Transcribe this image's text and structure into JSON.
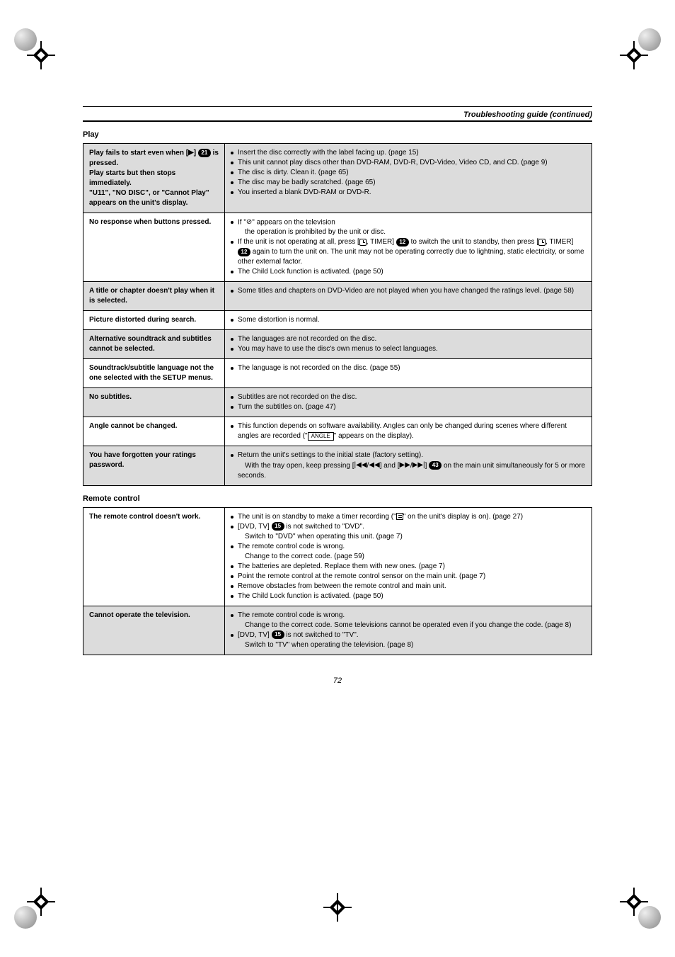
{
  "header": {
    "title": "Troubleshooting guide (continued)"
  },
  "page_number": "72",
  "sections": [
    {
      "heading": "Play",
      "rows": [
        {
          "shaded": true,
          "symptom_parts": [
            {
              "t": "Play fails to start even when ["
            },
            {
              "sym": "▶"
            },
            {
              "t": "] "
            },
            {
              "pill": "21"
            },
            {
              "t": " is pressed."
            },
            {
              "br": true
            },
            {
              "t": "Play starts but then stops immediately."
            },
            {
              "br": true
            },
            {
              "t": "\"U11\", \"NO DISC\", or \"Cannot Play\" appears on the unit's display."
            }
          ],
          "remedies": [
            [
              {
                "t": "Insert the disc correctly with the label facing up. (page 15)"
              }
            ],
            [
              {
                "t": "This unit cannot play discs other than DVD-RAM, DVD-R, DVD-Video, Video CD, and CD. (page 9)"
              }
            ],
            [
              {
                "t": "The disc is dirty. Clean it. (page 65)"
              }
            ],
            [
              {
                "t": "The disc may be badly scratched. (page 65)"
              }
            ],
            [
              {
                "t": "You inserted a blank DVD-RAM or DVD-R."
              }
            ]
          ]
        },
        {
          "shaded": false,
          "symptom_parts": [
            {
              "t": "No response when buttons pressed."
            }
          ],
          "remedies": [
            [
              {
                "t": "If \""
              },
              {
                "sym": "⊘"
              },
              {
                "t": "\" appears on the television"
              },
              {
                "br": true
              },
              {
                "sub": "the operation is prohibited by the unit or disc."
              }
            ],
            [
              {
                "t": "If the unit is not operating at all, press ["
              },
              {
                "clock": true
              },
              {
                "t": ", TIMER] "
              },
              {
                "pill": "12"
              },
              {
                "t": " to switch the unit to standby, then press ["
              },
              {
                "clock": true
              },
              {
                "t": ", TIMER] "
              },
              {
                "pill": "12"
              },
              {
                "t": " again to turn the unit on. The unit may not be operating correctly due to lightning, static electricity, or some other external factor."
              }
            ],
            [
              {
                "t": "The Child Lock function is activated. (page 50)"
              }
            ]
          ]
        },
        {
          "shaded": true,
          "symptom_parts": [
            {
              "t": "A title or chapter doesn't play when it is selected."
            }
          ],
          "remedies": [
            [
              {
                "t": "Some titles and chapters on DVD-Video are not played when you have changed the ratings level. (page 58)"
              }
            ]
          ]
        },
        {
          "shaded": false,
          "symptom_parts": [
            {
              "t": "Picture distorted during search."
            }
          ],
          "remedies": [
            [
              {
                "t": "Some distortion is normal."
              }
            ]
          ]
        },
        {
          "shaded": true,
          "symptom_parts": [
            {
              "t": "Alternative soundtrack and subtitles cannot be selected."
            }
          ],
          "remedies": [
            [
              {
                "t": "The languages are not recorded on the disc."
              }
            ],
            [
              {
                "t": "You may have to use the disc's own menus to select languages."
              }
            ]
          ]
        },
        {
          "shaded": false,
          "symptom_parts": [
            {
              "t": "Soundtrack/subtitle language not the one selected with the SETUP menus."
            }
          ],
          "remedies": [
            [
              {
                "t": "The language is not recorded on the disc. (page 55)"
              }
            ]
          ]
        },
        {
          "shaded": true,
          "symptom_parts": [
            {
              "t": "No subtitles."
            }
          ],
          "remedies": [
            [
              {
                "t": "Subtitles are not recorded on the disc."
              }
            ],
            [
              {
                "t": "Turn the subtitles on. (page 47)"
              }
            ]
          ]
        },
        {
          "shaded": false,
          "symptom_parts": [
            {
              "t": "Angle cannot be changed."
            }
          ],
          "remedies": [
            [
              {
                "t": "This function depends on software availability. Angles can only be changed during scenes where different angles are recorded (\""
              },
              {
                "box": "ANGLE"
              },
              {
                "t": "\" appears on the display)."
              }
            ]
          ]
        },
        {
          "shaded": true,
          "symptom_parts": [
            {
              "t": "You have forgotten your ratings password."
            }
          ],
          "remedies": [
            [
              {
                "t": "Return the unit's settings to the initial state (factory setting)."
              },
              {
                "br": true
              },
              {
                "sub_parts": [
                  {
                    "t": "With the tray open, keep pressing ["
                  },
                  {
                    "sym": "|◀◀"
                  },
                  {
                    "t": "/"
                  },
                  {
                    "sym": "◀◀"
                  },
                  {
                    "t": "] and ["
                  },
                  {
                    "sym": "▶▶"
                  },
                  {
                    "t": "/"
                  },
                  {
                    "sym": "▶▶|"
                  },
                  {
                    "t": "] "
                  },
                  {
                    "pill": "43"
                  },
                  {
                    "t": " on the main unit simultaneously for 5 or more seconds."
                  }
                ]
              }
            ]
          ]
        }
      ]
    },
    {
      "heading": "Remote control",
      "rows": [
        {
          "shaded": false,
          "symptom_parts": [
            {
              "t": "The remote control doesn't work."
            }
          ],
          "remedies": [
            [
              {
                "t": "The unit is on standby to make a timer recording (\""
              },
              {
                "timericon": true
              },
              {
                "t": "\" on the unit's display is on). (page 27)"
              }
            ],
            [
              {
                "t": "[DVD, TV] "
              },
              {
                "pill": "15"
              },
              {
                "t": " is not switched to \"DVD\"."
              },
              {
                "br": true
              },
              {
                "sub": "Switch to \"DVD\" when operating this unit. (page 7)"
              }
            ],
            [
              {
                "t": "The remote control code is wrong."
              },
              {
                "br": true
              },
              {
                "sub": "Change to the correct code. (page 59)"
              }
            ],
            [
              {
                "t": "The batteries are depleted. Replace them with new ones. (page 7)"
              }
            ],
            [
              {
                "t": "Point the remote control at the remote control sensor on the main unit. (page 7)"
              }
            ],
            [
              {
                "t": "Remove obstacles from between the remote control and main unit."
              }
            ],
            [
              {
                "t": "The Child Lock function is activated. (page 50)"
              }
            ]
          ]
        },
        {
          "shaded": true,
          "symptom_parts": [
            {
              "t": "Cannot operate the television."
            }
          ],
          "remedies": [
            [
              {
                "t": "The remote control code is wrong."
              },
              {
                "br": true
              },
              {
                "sub": "Change to the correct code. Some televisions cannot be operated even if you change the code. (page 8)"
              }
            ],
            [
              {
                "t": "[DVD, TV] "
              },
              {
                "pill": "15"
              },
              {
                "t": " is not switched to \"TV\"."
              },
              {
                "br": true
              },
              {
                "sub": "Switch to \"TV\" when operating the television. (page 8)"
              }
            ]
          ]
        }
      ]
    }
  ]
}
